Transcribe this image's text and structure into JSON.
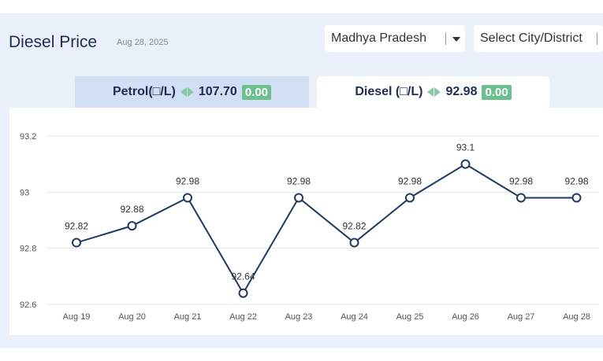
{
  "header": {
    "title": "Diesel Price",
    "date": "Aug 28, 2025"
  },
  "selects": {
    "state": "Madhya Pradesh",
    "city_placeholder": "Select City/District"
  },
  "tabs": [
    {
      "label": "Petrol(□/L)",
      "price": "107.70",
      "change": "0.00",
      "active": false
    },
    {
      "label": "Diesel (□/L)",
      "price": "92.98",
      "change": "0.00",
      "active": true
    }
  ],
  "colors": {
    "line": "#1e3a5f",
    "badge": "#6cc08e",
    "arrow": "#88c9a4",
    "panel": "#eaf0f9"
  },
  "chart_data": {
    "type": "line",
    "categories": [
      "Aug 19",
      "Aug 20",
      "Aug 21",
      "Aug 22",
      "Aug 23",
      "Aug 24",
      "Aug 25",
      "Aug 26",
      "Aug 27",
      "Aug 28"
    ],
    "series": [
      {
        "values": [
          92.82,
          92.88,
          92.98,
          92.64,
          92.98,
          92.82,
          92.98,
          93.1,
          92.98,
          92.98
        ]
      }
    ],
    "data_labels": [
      "92.82",
      "92.88",
      "92.98",
      "92.64",
      "92.98",
      "92.82",
      "92.98",
      "93.1",
      "92.98",
      "92.98"
    ],
    "y_ticks": [
      "92.6",
      "92.8",
      "93",
      "93.2"
    ],
    "ylim": [
      92.6,
      93.2
    ],
    "grid": true,
    "legend": "none"
  }
}
